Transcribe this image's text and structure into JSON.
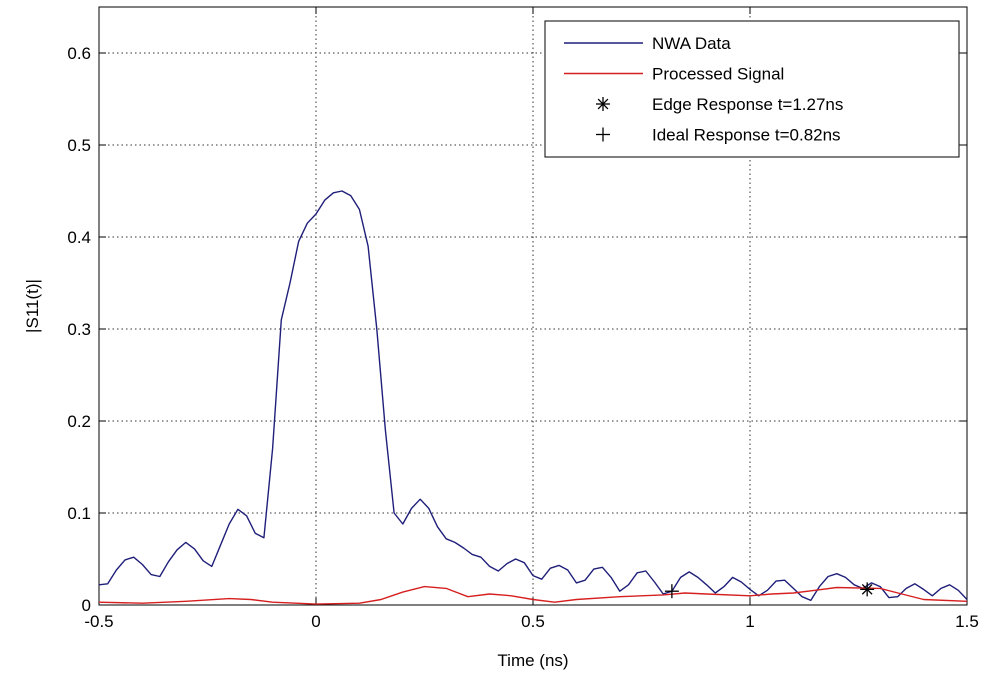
{
  "chart_data": {
    "type": "line",
    "xlabel": "Time (ns)",
    "ylabel": "|S11(t)|",
    "xlim": [
      -0.5,
      1.5
    ],
    "ylim": [
      0,
      0.65
    ],
    "xticks": [
      -0.5,
      0,
      0.5,
      1,
      1.5
    ],
    "xtick_labels": [
      "-0.5",
      "0",
      "0.5",
      "1",
      "1.5"
    ],
    "yticks": [
      0,
      0.1,
      0.2,
      0.3,
      0.4,
      0.5,
      0.6
    ],
    "ytick_labels": [
      "0",
      "0.1",
      "0.2",
      "0.3",
      "0.4",
      "0.5",
      "0.6"
    ],
    "grid": "dotted",
    "legend_position": "top-right",
    "series": [
      {
        "name": "NWA Data",
        "color": "#1f1f7a",
        "x": [
          -0.5,
          -0.48,
          -0.46,
          -0.44,
          -0.42,
          -0.4,
          -0.38,
          -0.36,
          -0.34,
          -0.32,
          -0.3,
          -0.28,
          -0.26,
          -0.24,
          -0.22,
          -0.2,
          -0.18,
          -0.16,
          -0.14,
          -0.12,
          -0.1,
          -0.08,
          -0.06,
          -0.04,
          -0.02,
          0,
          0.02,
          0.04,
          0.06,
          0.08,
          0.1,
          0.12,
          0.14,
          0.16,
          0.18,
          0.2,
          0.22,
          0.24,
          0.26,
          0.28,
          0.3,
          0.32,
          0.34,
          0.36,
          0.38,
          0.4,
          0.42,
          0.44,
          0.46,
          0.48,
          0.5,
          0.52,
          0.54,
          0.56,
          0.58,
          0.6,
          0.62,
          0.64,
          0.66,
          0.68,
          0.7,
          0.72,
          0.74,
          0.76,
          0.78,
          0.8,
          0.82,
          0.84,
          0.86,
          0.88,
          0.9,
          0.92,
          0.94,
          0.96,
          0.98,
          1,
          1.02,
          1.04,
          1.06,
          1.08,
          1.1,
          1.12,
          1.14,
          1.16,
          1.18,
          1.2,
          1.22,
          1.24,
          1.26,
          1.28,
          1.3,
          1.32,
          1.34,
          1.36,
          1.38,
          1.4,
          1.42,
          1.44,
          1.46,
          1.48,
          1.5
        ],
        "y": [
          0.022,
          0.023,
          0.038,
          0.049,
          0.052,
          0.044,
          0.033,
          0.031,
          0.047,
          0.06,
          0.068,
          0.061,
          0.048,
          0.042,
          0.065,
          0.088,
          0.104,
          0.097,
          0.078,
          0.073,
          0.17,
          0.31,
          0.35,
          0.395,
          0.415,
          0.425,
          0.44,
          0.448,
          0.45,
          0.445,
          0.43,
          0.39,
          0.3,
          0.19,
          0.1,
          0.088,
          0.105,
          0.115,
          0.105,
          0.085,
          0.072,
          0.068,
          0.062,
          0.055,
          0.052,
          0.042,
          0.037,
          0.045,
          0.05,
          0.046,
          0.032,
          0.028,
          0.04,
          0.043,
          0.038,
          0.024,
          0.027,
          0.039,
          0.041,
          0.03,
          0.015,
          0.022,
          0.035,
          0.037,
          0.025,
          0.012,
          0.015,
          0.03,
          0.036,
          0.03,
          0.022,
          0.013,
          0.02,
          0.03,
          0.025,
          0.017,
          0.01,
          0.016,
          0.026,
          0.027,
          0.018,
          0.009,
          0.005,
          0.02,
          0.031,
          0.034,
          0.03,
          0.022,
          0.018,
          0.024,
          0.02,
          0.008,
          0.009,
          0.018,
          0.023,
          0.017,
          0.01,
          0.018,
          0.022,
          0.016,
          0.006
        ]
      },
      {
        "name": "Processed Signal",
        "color": "#d62020",
        "x": [
          -0.5,
          -0.4,
          -0.3,
          -0.2,
          -0.15,
          -0.1,
          0,
          0.1,
          0.15,
          0.2,
          0.25,
          0.3,
          0.35,
          0.4,
          0.45,
          0.5,
          0.55,
          0.6,
          0.7,
          0.8,
          0.85,
          0.9,
          1,
          1.05,
          1.1,
          1.15,
          1.2,
          1.3,
          1.35,
          1.4,
          1.5
        ],
        "y": [
          0.003,
          0.002,
          0.004,
          0.007,
          0.006,
          0.003,
          0.001,
          0.002,
          0.006,
          0.014,
          0.02,
          0.018,
          0.009,
          0.012,
          0.01,
          0.006,
          0.003,
          0.006,
          0.009,
          0.011,
          0.013,
          0.012,
          0.01,
          0.012,
          0.013,
          0.016,
          0.019,
          0.018,
          0.012,
          0.006,
          0.004
        ]
      },
      {
        "name": "Edge Response t=1.27ns",
        "marker": "asterisk",
        "x": [
          1.27
        ],
        "y": [
          0.017
        ]
      },
      {
        "name": "Ideal Response t=0.82ns",
        "marker": "plus",
        "x": [
          0.82
        ],
        "y": [
          0.015
        ]
      }
    ]
  }
}
